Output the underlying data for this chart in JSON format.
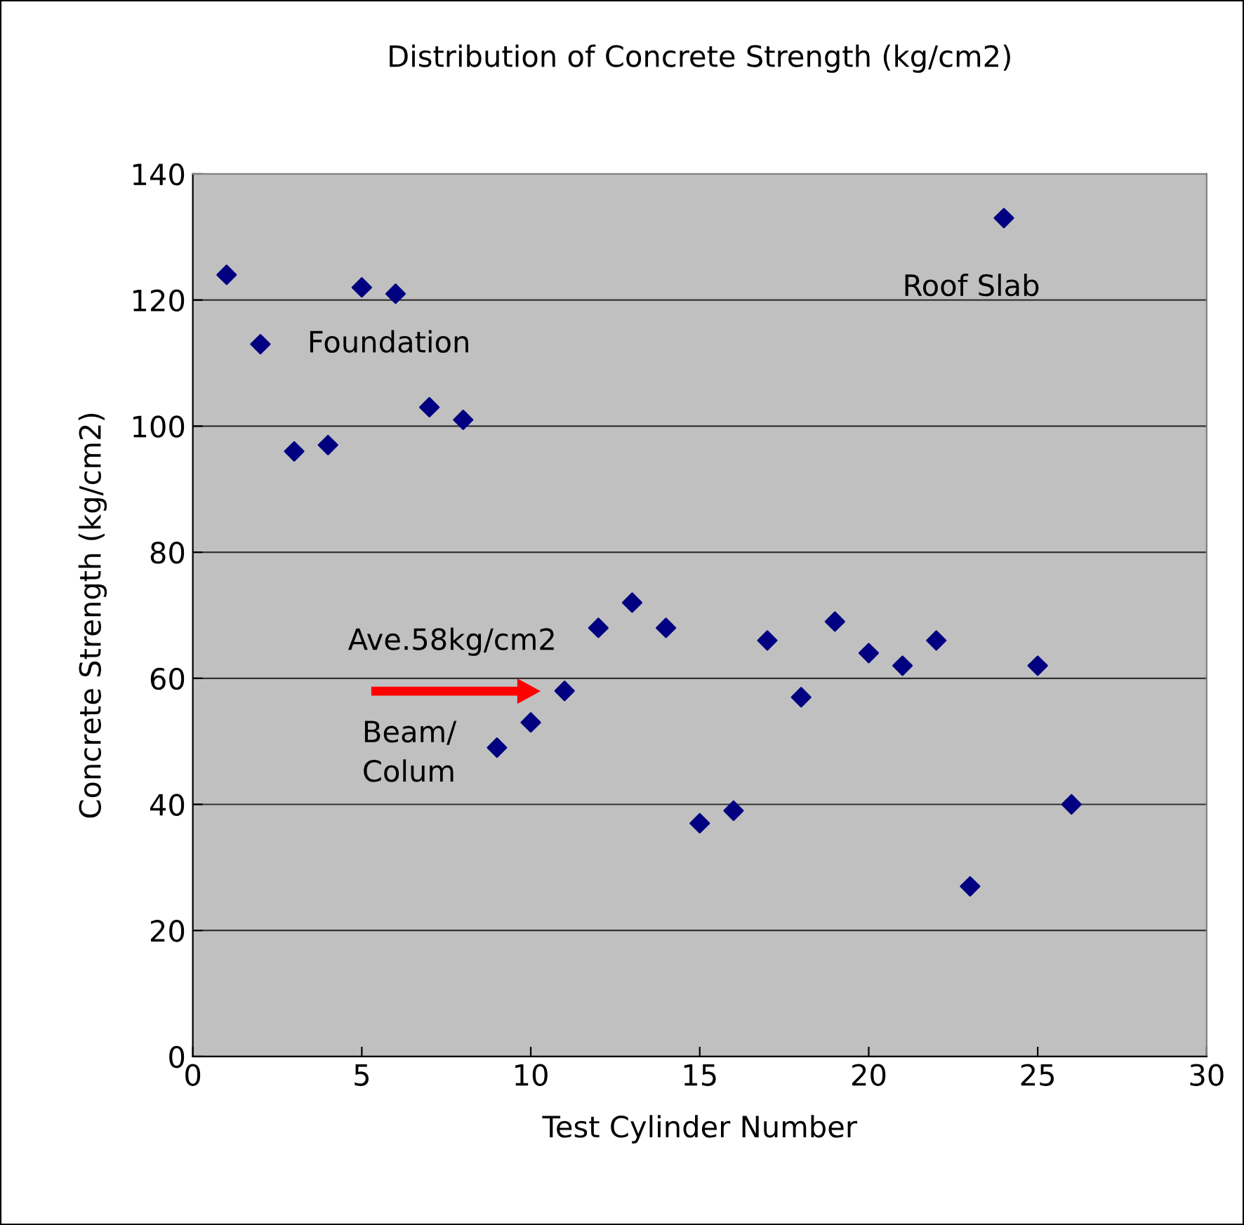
{
  "chart_data": {
    "type": "scatter",
    "title": "Distribution of Concrete Strength (kg/cm2)",
    "xlabel": "Test Cylinder Number",
    "ylabel": "Concrete Strength (kg/cm2)",
    "x": [
      1,
      2,
      3,
      4,
      5,
      6,
      7,
      8,
      9,
      10,
      11,
      12,
      13,
      14,
      15,
      16,
      17,
      18,
      19,
      20,
      21,
      22,
      23,
      24,
      25,
      26
    ],
    "series": [
      {
        "color": "#000080",
        "values": [
          124,
          113,
          96,
          97,
          122,
          121,
          103,
          101,
          49,
          53,
          58,
          68,
          72,
          68,
          37,
          39,
          66,
          57,
          69,
          64,
          62,
          66,
          27,
          133,
          62,
          40
        ]
      }
    ],
    "xlim": [
      0,
      30
    ],
    "xticks": [
      0,
      5,
      10,
      15,
      20,
      25,
      30
    ],
    "ylim": [
      0,
      140
    ],
    "yticks": [
      0,
      20,
      40,
      60,
      80,
      100,
      120,
      140
    ],
    "grid": "y",
    "marker": "diamond",
    "annotations": [
      "Foundation",
      "Roof Slab",
      "Ave.58kg/cm2",
      "Beam/\nColum"
    ]
  }
}
